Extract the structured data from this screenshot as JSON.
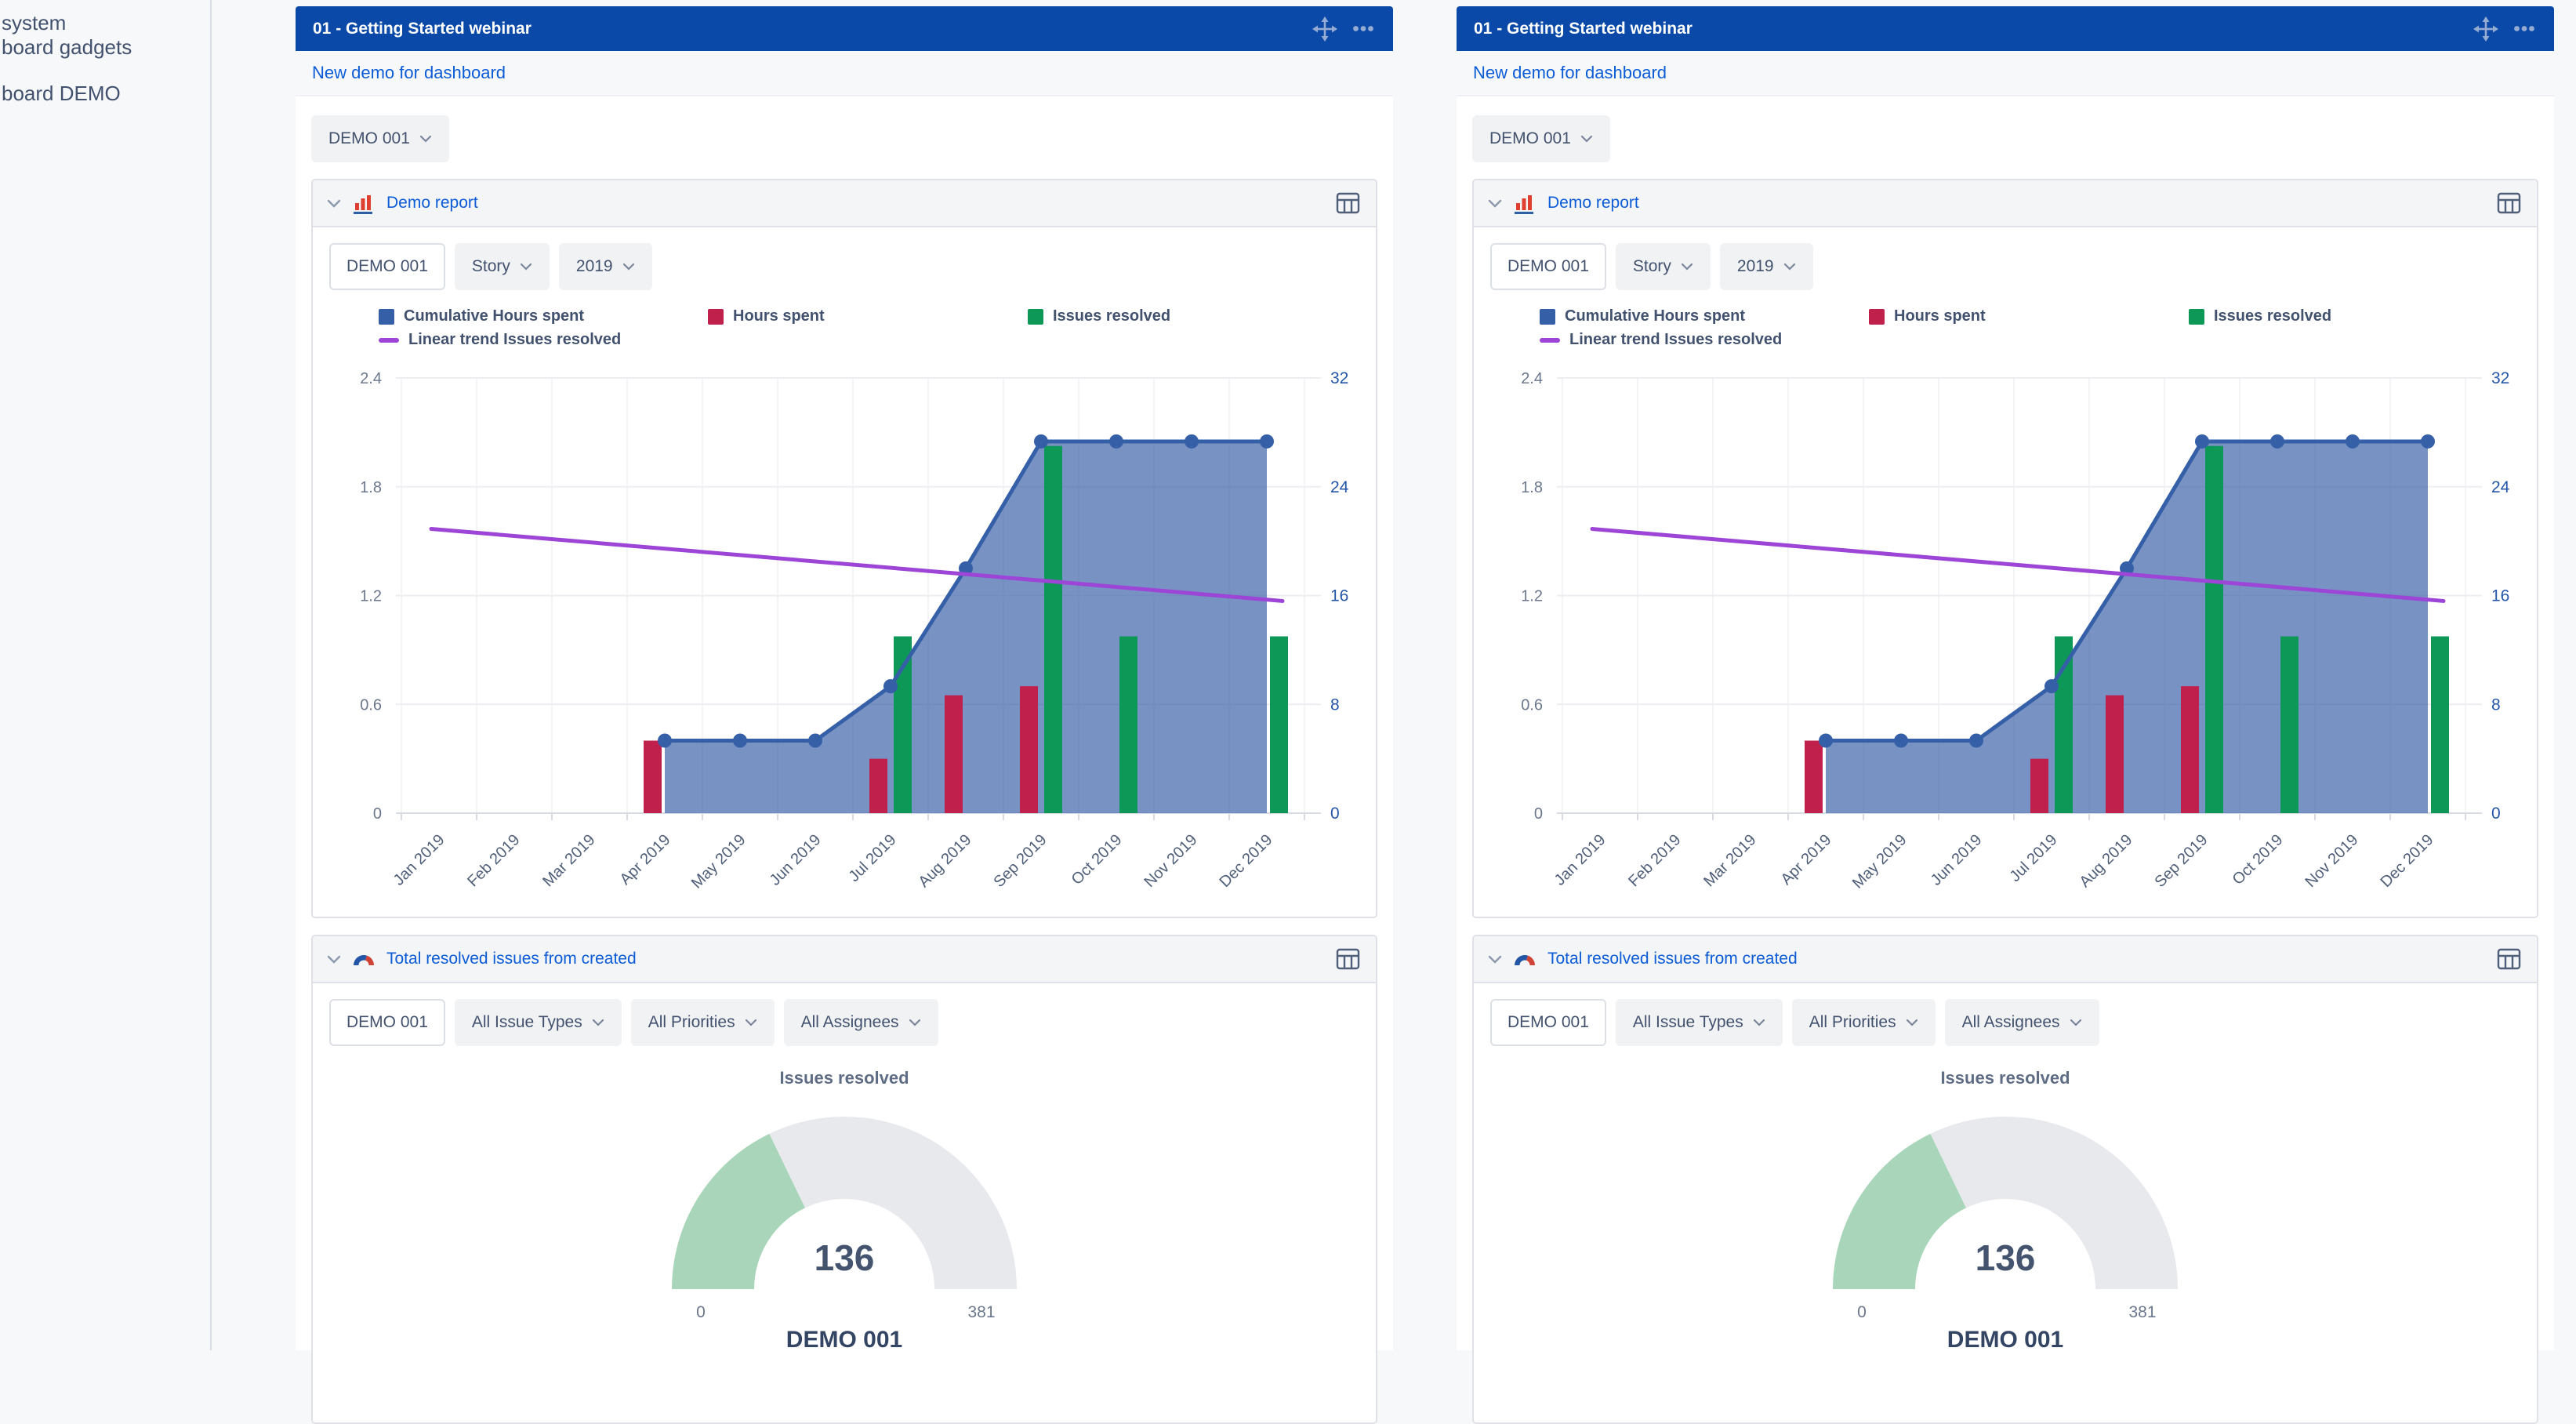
{
  "colors": {
    "titlebar_blue": "#0A49A8",
    "link_blue": "#0B5CD6",
    "cumulative_blue": "#3560A8",
    "hours_red": "#C0204C",
    "issues_green": "#0E9858",
    "trend_purple": "#9C45D6",
    "gauge_green": "#A9D6BA",
    "gauge_track": "#E8E9ED"
  },
  "sidebar": {
    "items": [
      {
        "label": "system"
      },
      {
        "label": "board gadgets"
      },
      {
        "label": "board DEMO"
      }
    ]
  },
  "panels": [
    {
      "title": "01 - Getting Started webinar",
      "link": "New demo for dashboard",
      "project_selector": {
        "label": "DEMO 001"
      },
      "gadgets": [
        {
          "title": "Demo report",
          "filters": [
            {
              "label": "DEMO 001"
            },
            {
              "label": "Story"
            },
            {
              "label": "2019"
            }
          ]
        },
        {
          "title": "Total resolved issues from created",
          "filters": [
            {
              "label": "DEMO 001"
            },
            {
              "label": "All Issue Types"
            },
            {
              "label": "All Priorities"
            },
            {
              "label": "All Assignees"
            }
          ]
        }
      ]
    },
    {
      "title": "01 - Getting Started webinar",
      "link": "New demo for dashboard",
      "project_selector": {
        "label": "DEMO 001"
      },
      "gadgets": [
        {
          "title": "Demo report",
          "filters": [
            {
              "label": "DEMO 001"
            },
            {
              "label": "Story"
            },
            {
              "label": "2019"
            }
          ]
        },
        {
          "title": "Total resolved issues from created",
          "filters": [
            {
              "label": "DEMO 001"
            },
            {
              "label": "All Issue Types"
            },
            {
              "label": "All Priorities"
            },
            {
              "label": "All Assignees"
            }
          ]
        }
      ]
    }
  ],
  "chart_data": [
    {
      "type": "bar",
      "subtype": "combo-bar-area-line",
      "categories": [
        "Jan 2019",
        "Feb 2019",
        "Mar 2019",
        "Apr 2019",
        "May 2019",
        "Jun 2019",
        "Jul 2019",
        "Aug 2019",
        "Sep 2019",
        "Oct 2019",
        "Nov 2019",
        "Dec 2019"
      ],
      "left_axis": {
        "ticks": [
          0,
          0.6,
          1.2,
          1.8,
          2.4
        ],
        "max": 2.4,
        "label_color": "#6B778C"
      },
      "right_axis": {
        "ticks": [
          0,
          8,
          16,
          24,
          32
        ],
        "max": 32,
        "label_color": "#2456A8"
      },
      "grid": true,
      "legend_position": "top",
      "series": [
        {
          "name": "Cumulative Hours spent",
          "type": "area",
          "axis": "left",
          "color": "#3560A8",
          "fill": "rgba(62,100,170,0.7)",
          "values": [
            null,
            null,
            null,
            0.4,
            0.4,
            0.4,
            0.7,
            1.35,
            2.05,
            2.05,
            2.05,
            2.05
          ]
        },
        {
          "name": "Hours spent",
          "type": "bar",
          "axis": "left",
          "color": "#C0204C",
          "values": [
            null,
            null,
            null,
            0.4,
            null,
            null,
            0.3,
            0.65,
            0.7,
            null,
            null,
            null
          ]
        },
        {
          "name": "Issues resolved",
          "type": "bar",
          "axis": "right",
          "color": "#0E9858",
          "values": [
            null,
            null,
            null,
            null,
            null,
            null,
            13,
            null,
            27,
            13,
            null,
            13
          ]
        },
        {
          "name": "Linear trend Issues resolved",
          "type": "trend",
          "axis": "right",
          "color": "#9C45D6",
          "start": 20.9,
          "end": 15.6
        }
      ]
    },
    {
      "type": "pie",
      "subtype": "gauge",
      "title": "Issues resolved",
      "value": 136,
      "min": 0,
      "max": 381,
      "arc_color": "#A9D6BA",
      "track_color": "#E8E9ED",
      "value_color": "#44546F",
      "label_color": "#6B778C",
      "footer": "DEMO 001"
    }
  ]
}
